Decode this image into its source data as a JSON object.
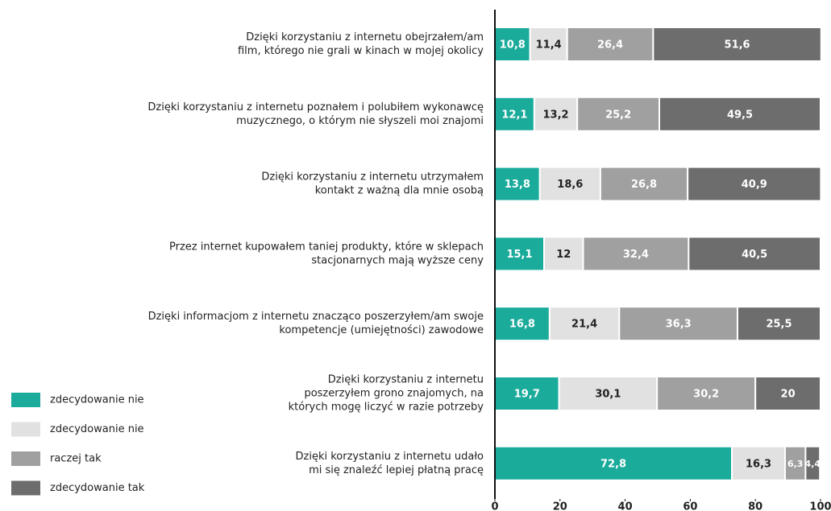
{
  "chart_data": {
    "type": "stacked-bar-horizontal",
    "categories": [
      [
        "Dzięki korzystaniu z internetu obejrzałem/am",
        "film, którego nie grali w kinach w mojej okolicy"
      ],
      [
        "Dzięki korzystaniu z internetu poznałem i polubiłem wykonawcę",
        "muzycznego, o którym nie słyszeli moi znajomi"
      ],
      [
        "Dzięki korzystaniu z internetu utrzymałem",
        "kontakt z ważną dla mnie osobą"
      ],
      [
        "Przez internet kupowałem taniej produkty, które w sklepach",
        "stacjonarnych mają wyższe ceny"
      ],
      [
        "Dzięki informacjom z internetu znacząco poszerzyłem/am swoje",
        "kompetencje (umiejętności) zawodowe"
      ],
      [
        "Dzięki korzystaniu z internetu",
        "poszerzyłem grono znajomych, na",
        "których mogę liczyć w razie potrzeby"
      ],
      [
        "Dzięki korzystaniu z internetu udało",
        "mi się znaleźć lepiej płatną pracę"
      ]
    ],
    "series": [
      {
        "name": "zdecydowanie nie",
        "color": "#1aab9b",
        "label_color": "#ffffff",
        "values": [
          10.8,
          12.1,
          13.8,
          15.1,
          16.8,
          19.7,
          72.8
        ],
        "value_labels": [
          "10,8",
          "12,1",
          "13,8",
          "15,1",
          "16,8",
          "19,7",
          "72,8"
        ]
      },
      {
        "name": "zdecydowanie nie",
        "color": "#e1e1e1",
        "label_color": "#222222",
        "values": [
          11.4,
          13.2,
          18.6,
          12,
          21.4,
          30.1,
          16.3
        ],
        "value_labels": [
          "11,4",
          "13,2",
          "18,6",
          "12",
          "21,4",
          "30,1",
          "16,3"
        ]
      },
      {
        "name": "raczej tak",
        "color": "#a0a0a0",
        "label_color": "#ffffff",
        "values": [
          26.4,
          25.2,
          26.8,
          32.4,
          36.3,
          30.2,
          6.3
        ],
        "value_labels": [
          "26,4",
          "25,2",
          "26,8",
          "32,4",
          "36,3",
          "30,2",
          "6,3"
        ]
      },
      {
        "name": "zdecydowanie tak",
        "color": "#6d6d6d",
        "label_color": "#ffffff",
        "values": [
          51.6,
          49.5,
          40.9,
          40.5,
          25.5,
          20,
          4.4
        ],
        "value_labels": [
          "51,6",
          "49,5",
          "40,9",
          "40,5",
          "25,5",
          "20",
          "4,4"
        ]
      }
    ],
    "xlim": [
      0,
      100
    ],
    "xticks": [
      0,
      20,
      40,
      60,
      80,
      100
    ],
    "legend": "bottom-left"
  }
}
